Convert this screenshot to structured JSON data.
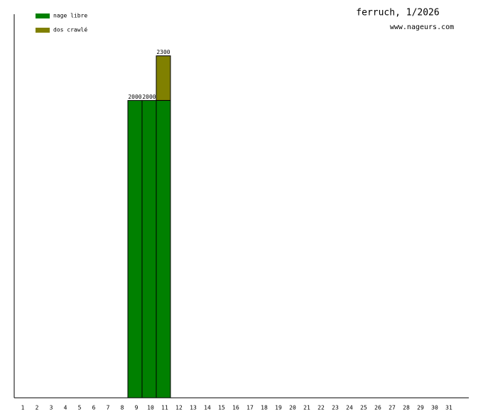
{
  "chart_data": {
    "type": "stacked-bar",
    "title": "ferruch, 1/2026",
    "subtitle": "www.nageurs.com",
    "categories": [
      "1",
      "2",
      "3",
      "4",
      "5",
      "6",
      "7",
      "8",
      "9",
      "10",
      "11",
      "12",
      "13",
      "14",
      "15",
      "16",
      "17",
      "18",
      "19",
      "20",
      "21",
      "22",
      "23",
      "24",
      "25",
      "26",
      "27",
      "28",
      "29",
      "30",
      "31"
    ],
    "series": [
      {
        "name": "nage libre",
        "color": "#008000",
        "values": [
          0,
          0,
          0,
          0,
          0,
          0,
          0,
          0,
          2000,
          2000,
          2000,
          0,
          0,
          0,
          0,
          0,
          0,
          0,
          0,
          0,
          0,
          0,
          0,
          0,
          0,
          0,
          0,
          0,
          0,
          0,
          0
        ]
      },
      {
        "name": "dos crawlé",
        "color": "#808000",
        "values": [
          0,
          0,
          0,
          0,
          0,
          0,
          0,
          0,
          0,
          0,
          300,
          0,
          0,
          0,
          0,
          0,
          0,
          0,
          0,
          0,
          0,
          0,
          0,
          0,
          0,
          0,
          0,
          0,
          0,
          0,
          0
        ]
      }
    ],
    "totals": [
      null,
      null,
      null,
      null,
      null,
      null,
      null,
      null,
      "2000",
      "2000",
      "2300",
      null,
      null,
      null,
      null,
      null,
      null,
      null,
      null,
      null,
      null,
      null,
      null,
      null,
      null,
      null,
      null,
      null,
      null,
      null,
      null
    ],
    "ylim": [
      0,
      2580
    ],
    "legend": "top-left"
  }
}
